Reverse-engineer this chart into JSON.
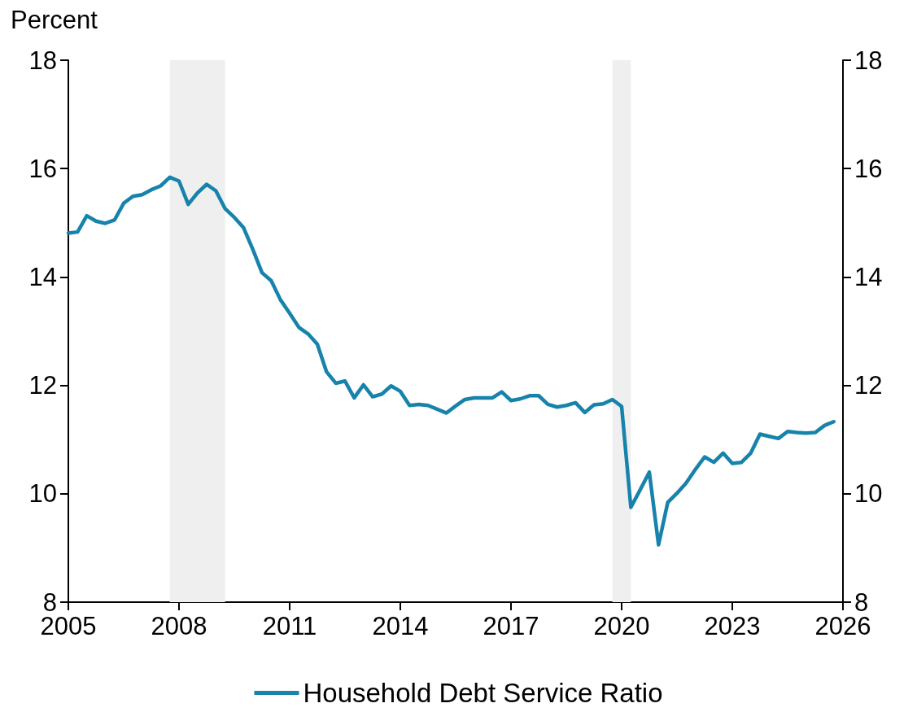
{
  "chart_data": {
    "type": "line",
    "ylabel": "Percent",
    "x": [
      2005.0,
      2005.25,
      2005.5,
      2005.75,
      2006.0,
      2006.25,
      2006.5,
      2006.75,
      2007.0,
      2007.25,
      2007.5,
      2007.75,
      2008.0,
      2008.25,
      2008.5,
      2008.75,
      2009.0,
      2009.25,
      2009.5,
      2009.75,
      2010.0,
      2010.25,
      2010.5,
      2010.75,
      2011.0,
      2011.25,
      2011.5,
      2011.75,
      2012.0,
      2012.25,
      2012.5,
      2012.75,
      2013.0,
      2013.25,
      2013.5,
      2013.75,
      2014.0,
      2014.25,
      2014.5,
      2014.75,
      2015.0,
      2015.25,
      2015.5,
      2015.75,
      2016.0,
      2016.25,
      2016.5,
      2016.75,
      2017.0,
      2017.25,
      2017.5,
      2017.75,
      2018.0,
      2018.25,
      2018.5,
      2018.75,
      2019.0,
      2019.25,
      2019.5,
      2019.75,
      2020.0,
      2020.25,
      2020.5,
      2020.75,
      2021.0,
      2021.25,
      2021.5,
      2021.75,
      2022.0,
      2022.25,
      2022.5,
      2022.75,
      2023.0,
      2023.25,
      2023.5,
      2023.75,
      2024.0,
      2024.25,
      2024.5,
      2024.75,
      2025.0,
      2025.25,
      2025.5,
      2025.75
    ],
    "series": [
      {
        "name": "Household Debt Service Ratio",
        "color": "#1783ab",
        "values": [
          14.81,
          14.83,
          15.13,
          15.03,
          14.99,
          15.05,
          15.36,
          15.49,
          15.52,
          15.61,
          15.68,
          15.84,
          15.77,
          15.34,
          15.55,
          15.71,
          15.59,
          15.26,
          15.1,
          14.91,
          14.51,
          14.08,
          13.93,
          13.58,
          13.33,
          13.07,
          12.95,
          12.76,
          12.25,
          12.04,
          12.08,
          11.77,
          12.01,
          11.79,
          11.84,
          11.99,
          11.89,
          11.63,
          11.65,
          11.63,
          11.56,
          11.49,
          11.62,
          11.74,
          11.77,
          11.77,
          11.77,
          11.88,
          11.72,
          11.75,
          11.81,
          11.81,
          11.65,
          11.6,
          11.63,
          11.68,
          11.5,
          11.64,
          11.66,
          11.74,
          11.61,
          9.75,
          10.07,
          10.4,
          9.06,
          9.84,
          10.01,
          10.2,
          10.45,
          10.68,
          10.58,
          10.75,
          10.56,
          10.58,
          10.75,
          11.1,
          11.06,
          11.02,
          11.15,
          11.13,
          11.12,
          11.13,
          11.26,
          11.33
        ]
      }
    ],
    "xlim": [
      2005,
      2026
    ],
    "xticks": [
      2005,
      2008,
      2011,
      2014,
      2017,
      2020,
      2023,
      2026
    ],
    "ylim": [
      8,
      18
    ],
    "yticks": [
      8,
      10,
      12,
      14,
      16,
      18
    ],
    "y2lim": [
      8,
      18
    ],
    "y2ticks": [
      8,
      10,
      12,
      14,
      16,
      18
    ],
    "bands": [
      {
        "axis": "x",
        "from": 2007.75,
        "to": 2009.25,
        "color": "#efefef"
      },
      {
        "axis": "x",
        "from": 2019.75,
        "to": 2020.25,
        "color": "#efefef"
      }
    ],
    "legend": "bottom",
    "grid": false,
    "marker": "none",
    "line_style": "solid"
  }
}
